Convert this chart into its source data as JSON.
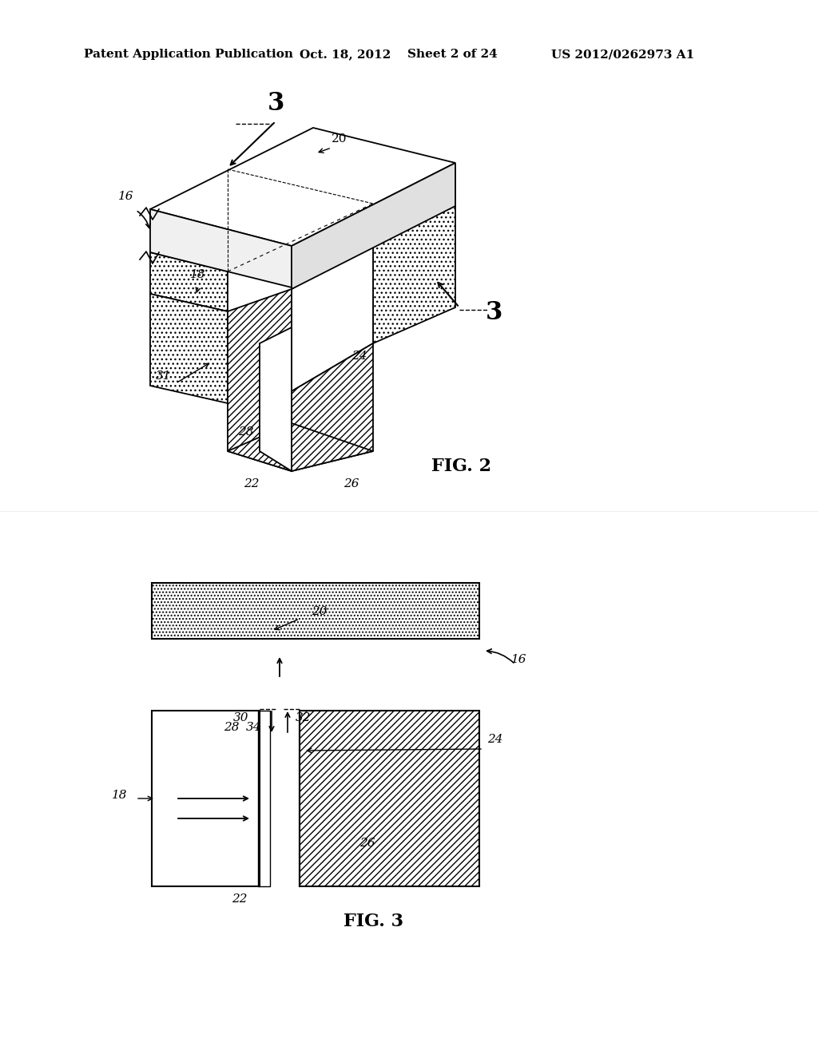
{
  "bg_color": "#ffffff",
  "header_text": "Patent Application Publication",
  "header_date": "Oct. 18, 2012",
  "header_sheet": "Sheet 2 of 24",
  "header_patent": "US 2012/0262973 A1",
  "fig2_label": "FIG. 2",
  "fig3_label": "FIG. 3",
  "label_3a": "3",
  "label_3b": "3",
  "label_16": "16",
  "label_18": "18",
  "label_20": "20",
  "label_22": "22",
  "label_24": "24",
  "label_26": "26",
  "label_28": "28",
  "label_31": "31",
  "label_30": "30",
  "label_32": "32",
  "label_34": "34"
}
